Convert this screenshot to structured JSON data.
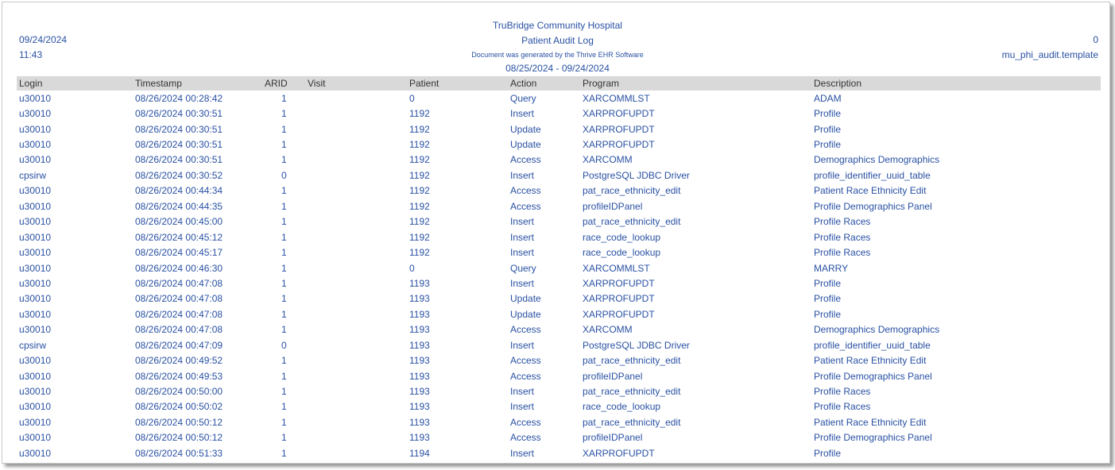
{
  "header": {
    "hospital": "TruBridge Community Hospital",
    "title": "Patient Audit Log",
    "generated_note": "Document was generated by the Thrive EHR Software",
    "date_range": "08/25/2024 - 09/24/2024",
    "print_date": "09/24/2024",
    "print_time": "11:43",
    "page": "0",
    "template": "mu_phi_audit.template"
  },
  "table": {
    "columns": [
      "Login",
      "Timestamp",
      "ARID",
      "Visit",
      "Patient",
      "Action",
      "Program",
      "Description"
    ],
    "rows": [
      [
        "u30010",
        "08/26/2024 00:28:42",
        "1",
        "",
        "0",
        "Query",
        "XARCOMMLST",
        "ADAM"
      ],
      [
        "u30010",
        "08/26/2024 00:30:51",
        "1",
        "",
        "1192",
        "Insert",
        "XARPROFUPDT",
        "Profile"
      ],
      [
        "u30010",
        "08/26/2024 00:30:51",
        "1",
        "",
        "1192",
        "Update",
        "XARPROFUPDT",
        "Profile"
      ],
      [
        "u30010",
        "08/26/2024 00:30:51",
        "1",
        "",
        "1192",
        "Update",
        "XARPROFUPDT",
        "Profile"
      ],
      [
        "u30010",
        "08/26/2024 00:30:51",
        "1",
        "",
        "1192",
        "Access",
        "XARCOMM",
        "Demographics Demographics"
      ],
      [
        "cpsirw",
        "08/26/2024 00:30:52",
        "0",
        "",
        "1192",
        "Insert",
        "PostgreSQL JDBC Driver",
        "profile_identifier_uuid_table"
      ],
      [
        "u30010",
        "08/26/2024 00:44:34",
        "1",
        "",
        "1192",
        "Access",
        "pat_race_ethnicity_edit",
        "Patient Race Ethnicity Edit"
      ],
      [
        "u30010",
        "08/26/2024 00:44:35",
        "1",
        "",
        "1192",
        "Access",
        "profileIDPanel",
        "Profile Demographics Panel"
      ],
      [
        "u30010",
        "08/26/2024 00:45:00",
        "1",
        "",
        "1192",
        "Insert",
        "pat_race_ethnicity_edit",
        "Profile Races"
      ],
      [
        "u30010",
        "08/26/2024 00:45:12",
        "1",
        "",
        "1192",
        "Insert",
        "race_code_lookup",
        "Profile Races"
      ],
      [
        "u30010",
        "08/26/2024 00:45:17",
        "1",
        "",
        "1192",
        "Insert",
        "race_code_lookup",
        "Profile Races"
      ],
      [
        "u30010",
        "08/26/2024 00:46:30",
        "1",
        "",
        "0",
        "Query",
        "XARCOMMLST",
        "MARRY"
      ],
      [
        "u30010",
        "08/26/2024 00:47:08",
        "1",
        "",
        "1193",
        "Insert",
        "XARPROFUPDT",
        "Profile"
      ],
      [
        "u30010",
        "08/26/2024 00:47:08",
        "1",
        "",
        "1193",
        "Update",
        "XARPROFUPDT",
        "Profile"
      ],
      [
        "u30010",
        "08/26/2024 00:47:08",
        "1",
        "",
        "1193",
        "Update",
        "XARPROFUPDT",
        "Profile"
      ],
      [
        "u30010",
        "08/26/2024 00:47:08",
        "1",
        "",
        "1193",
        "Access",
        "XARCOMM",
        "Demographics Demographics"
      ],
      [
        "cpsirw",
        "08/26/2024 00:47:09",
        "0",
        "",
        "1193",
        "Insert",
        "PostgreSQL JDBC Driver",
        "profile_identifier_uuid_table"
      ],
      [
        "u30010",
        "08/26/2024 00:49:52",
        "1",
        "",
        "1193",
        "Access",
        "pat_race_ethnicity_edit",
        "Patient Race Ethnicity Edit"
      ],
      [
        "u30010",
        "08/26/2024 00:49:53",
        "1",
        "",
        "1193",
        "Access",
        "profileIDPanel",
        "Profile Demographics Panel"
      ],
      [
        "u30010",
        "08/26/2024 00:50:00",
        "1",
        "",
        "1193",
        "Insert",
        "pat_race_ethnicity_edit",
        "Profile Races"
      ],
      [
        "u30010",
        "08/26/2024 00:50:02",
        "1",
        "",
        "1193",
        "Insert",
        "race_code_lookup",
        "Profile Races"
      ],
      [
        "u30010",
        "08/26/2024 00:50:12",
        "1",
        "",
        "1193",
        "Access",
        "pat_race_ethnicity_edit",
        "Patient Race Ethnicity Edit"
      ],
      [
        "u30010",
        "08/26/2024 00:50:12",
        "1",
        "",
        "1193",
        "Access",
        "profileIDPanel",
        "Profile Demographics Panel"
      ],
      [
        "u30010",
        "08/26/2024 00:51:33",
        "1",
        "",
        "1194",
        "Insert",
        "XARPROFUPDT",
        "Profile"
      ]
    ]
  }
}
